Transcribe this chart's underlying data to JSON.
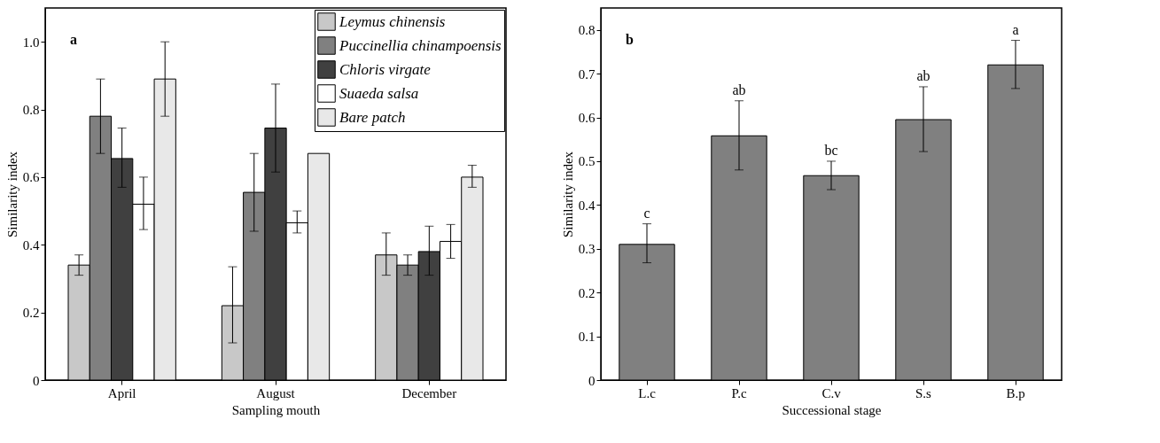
{
  "chart_data": [
    {
      "type": "bar",
      "xlabel": "Sampling mouth",
      "ylabel": "Similarity index",
      "categories": [
        "April",
        "August",
        "December"
      ],
      "ylim": [
        0,
        1.1
      ],
      "yticks": [
        0,
        0.2,
        0.4,
        0.6,
        0.8,
        {
          "value": 1,
          "label": "1.0"
        }
      ],
      "legend": "top right",
      "annotations": [
        "a"
      ],
      "series": [
        {
          "name": "Leymus chinensis",
          "color": "#c8c8c8",
          "values": [
            0.34,
            0.22,
            0.37
          ],
          "errors": [
            [
              0.31,
              0.37
            ],
            [
              0.11,
              0.335
            ],
            [
              0.31,
              0.435
            ]
          ]
        },
        {
          "name": "Puccinellia chinampoensis",
          "color": "#808080",
          "values": [
            0.78,
            0.555,
            0.34
          ],
          "errors": [
            [
              0.67,
              0.89
            ],
            [
              0.44,
              0.67
            ],
            [
              0.31,
              0.37
            ]
          ]
        },
        {
          "name": "Chloris virgate",
          "color": "#404040",
          "values": [
            0.655,
            0.745,
            0.38
          ],
          "errors": [
            [
              0.57,
              0.745
            ],
            [
              0.615,
              0.875
            ],
            [
              0.31,
              0.455
            ]
          ]
        },
        {
          "name": "Suaeda salsa",
          "color": "#ffffff",
          "values": [
            0.52,
            0.465,
            0.41
          ],
          "errors": [
            [
              0.445,
              0.6
            ],
            [
              0.435,
              0.5
            ],
            [
              0.36,
              0.46
            ]
          ]
        },
        {
          "name": "Bare patch",
          "color": "#e8e8e8",
          "values": [
            0.89,
            0.67,
            0.6
          ],
          "errors": [
            [
              0.78,
              1.0
            ],
            null,
            [
              0.57,
              0.635
            ]
          ]
        }
      ]
    },
    {
      "type": "bar",
      "xlabel": "Successional stage",
      "ylabel": "Similarity index",
      "categories": [
        "L.c",
        "P.c",
        "C.v",
        "S.s",
        "B.p"
      ],
      "ylim": [
        0,
        0.85
      ],
      "yticks": [
        0,
        0.1,
        0.2,
        0.3,
        0.4,
        0.5,
        0.6,
        0.7,
        0.8
      ],
      "annotations": [
        "b",
        {
          "text": "c",
          "x": "L.c",
          "y": 0.31
        },
        {
          "text": "ab",
          "x": "P.c",
          "y": 0.558
        },
        {
          "text": "bc",
          "x": "C.v",
          "y": 0.467
        },
        {
          "text": "ab",
          "x": "S.s",
          "y": 0.595
        },
        {
          "text": "a",
          "x": "B.p",
          "y": 0.72
        }
      ],
      "series": [
        {
          "color": "#808080",
          "values": [
            0.31,
            0.558,
            0.467,
            0.595,
            0.72
          ],
          "errors": [
            [
              0.268,
              0.357
            ],
            [
              0.48,
              0.638
            ],
            [
              0.435,
              0.5
            ],
            [
              0.522,
              0.67
            ],
            [
              0.666,
              0.776
            ]
          ]
        }
      ]
    }
  ]
}
